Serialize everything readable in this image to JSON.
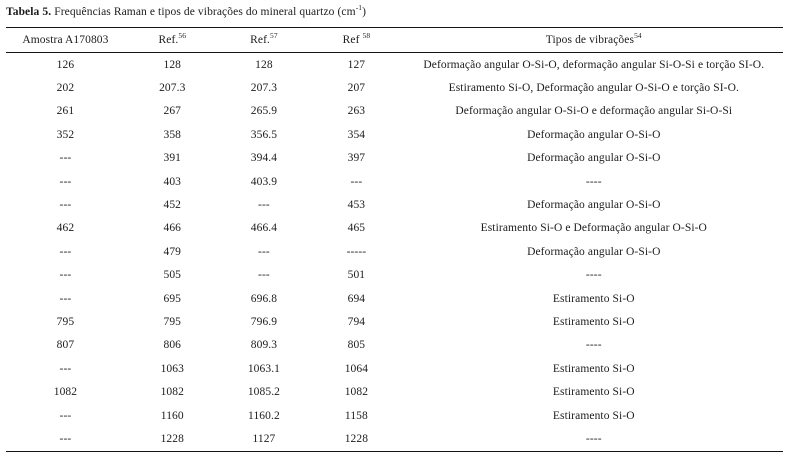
{
  "caption": {
    "label": "Tabela 5.",
    "text": " Frequências Raman e tipos de vibrações do mineral quartzo (cm",
    "sup": "-1",
    "suffix": ")"
  },
  "table": {
    "headers": [
      {
        "text": "Amostra A170803",
        "sup": ""
      },
      {
        "text": "Ref.",
        "sup": "56"
      },
      {
        "text": "Ref.",
        "sup": "57"
      },
      {
        "text": "Ref ",
        "sup": "58"
      },
      {
        "text": "Tipos de vibrações",
        "sup": "54"
      }
    ],
    "rows": [
      [
        "126",
        "128",
        "128",
        "127",
        "Deformação angular O-Si-O, deformação angular Si-O-Si e torção SI-O."
      ],
      [
        "202",
        "207.3",
        "207.3",
        "207",
        "Estiramento Si-O, Deformação angular O-Si-O e torção SI-O."
      ],
      [
        "261",
        "267",
        "265.9",
        "263",
        "Deformação angular O-Si-O e deformação angular Si-O-Si"
      ],
      [
        "352",
        "358",
        "356.5",
        "354",
        "Deformação angular O-Si-O"
      ],
      [
        "---",
        "391",
        "394.4",
        "397",
        "Deformação angular O-Si-O"
      ],
      [
        "---",
        "403",
        "403.9",
        "---",
        "----"
      ],
      [
        "---",
        "452",
        "---",
        "453",
        "Deformação angular O-Si-O"
      ],
      [
        "462",
        "466",
        "466.4",
        "465",
        "Estiramento Si-O e Deformação angular O-Si-O"
      ],
      [
        "---",
        "479",
        "---",
        "-----",
        "Deformação angular O-Si-O"
      ],
      [
        "---",
        "505",
        "---",
        "501",
        "----"
      ],
      [
        "---",
        "695",
        "696.8",
        "694",
        "Estiramento Si-O"
      ],
      [
        "795",
        "795",
        "796.9",
        "794",
        "Estiramento Si-O"
      ],
      [
        "807",
        "806",
        "809.3",
        "805",
        "----"
      ],
      [
        "---",
        "1063",
        "1063.1",
        "1064",
        "Estiramento Si-O"
      ],
      [
        "1082",
        "1082",
        "1085.2",
        "1082",
        "Estiramento Si-O"
      ],
      [
        "---",
        "1160",
        "1160.2",
        "1158",
        "Estiramento Si-O"
      ],
      [
        "---",
        "1228",
        "1127",
        "1228",
        "----"
      ]
    ]
  }
}
